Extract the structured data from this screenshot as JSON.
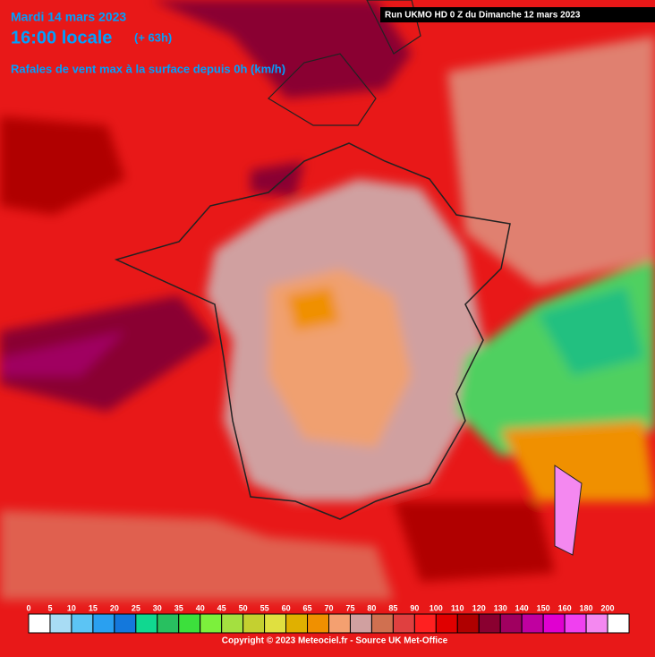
{
  "header": {
    "date": "Mardi 14 mars 2023",
    "time": "16:00 locale",
    "lead": "(+ 63h)",
    "parameter": "Rafales de vent max à la surface depuis 0h (km/h)",
    "run": "Run UKMO HD 0 Z du Dimanche 12 mars 2023"
  },
  "legend": {
    "values": [
      0,
      5,
      10,
      15,
      20,
      25,
      30,
      35,
      40,
      45,
      50,
      55,
      60,
      65,
      70,
      75,
      80,
      85,
      90,
      100,
      110,
      120,
      130,
      140,
      150,
      160,
      180,
      200
    ],
    "colors": [
      "#ffffff",
      "#a8dcf4",
      "#5cc4f4",
      "#2aa0f0",
      "#1478dc",
      "#10d890",
      "#28c060",
      "#3ce03c",
      "#7cf03c",
      "#a4e040",
      "#c4d030",
      "#e0e040",
      "#e0b000",
      "#f09000",
      "#f4a070",
      "#d0a0a0",
      "#d07050",
      "#e04040",
      "#ff2020",
      "#e00000",
      "#b00000",
      "#8a0030",
      "#a00060",
      "#c000a0",
      "#e000d0",
      "#f040f0",
      "#f488f0",
      "#ffffff"
    ]
  },
  "footer": {
    "copyright": "Copyright © 2023 Meteociel.fr - Source UK Met-Office"
  }
}
